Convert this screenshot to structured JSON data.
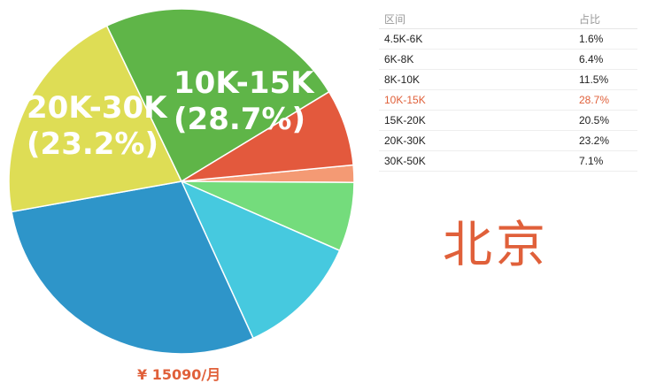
{
  "chart_data": {
    "type": "pie",
    "slices": [
      {
        "label": "4.5K-6K",
        "value": 1.6,
        "color": "#f49a74"
      },
      {
        "label": "6K-8K",
        "value": 6.4,
        "color": "#74dc7c"
      },
      {
        "label": "8K-10K",
        "value": 11.5,
        "color": "#46c9df"
      },
      {
        "label": "10K-15K",
        "value": 28.7,
        "color": "#2e95c9"
      },
      {
        "label": "15K-20K",
        "value": 20.5,
        "color": "#dedd55"
      },
      {
        "label": "20K-30K",
        "value": 23.2,
        "color": "#5fb548"
      },
      {
        "label": "30K-50K",
        "value": 7.1,
        "color": "#e3593d"
      }
    ],
    "data_labels": [
      {
        "line1": "10K-15K",
        "line2": "(28.7%)"
      },
      {
        "line1": "20K-30K",
        "line2": "(23.2%)"
      }
    ]
  },
  "salary_label": "¥ 15090/月",
  "table": {
    "headers": [
      "区间",
      "占比"
    ],
    "rows": [
      [
        "4.5K-6K",
        "1.6%"
      ],
      [
        "6K-8K",
        "6.4%"
      ],
      [
        "8K-10K",
        "11.5%"
      ],
      [
        "10K-15K",
        "28.7%"
      ],
      [
        "15K-20K",
        "20.5%"
      ],
      [
        "20K-30K",
        "23.2%"
      ],
      [
        "30K-50K",
        "7.1%"
      ]
    ],
    "highlighted_row": 3,
    "highlight_color": "#e0603a"
  },
  "city": "北京"
}
